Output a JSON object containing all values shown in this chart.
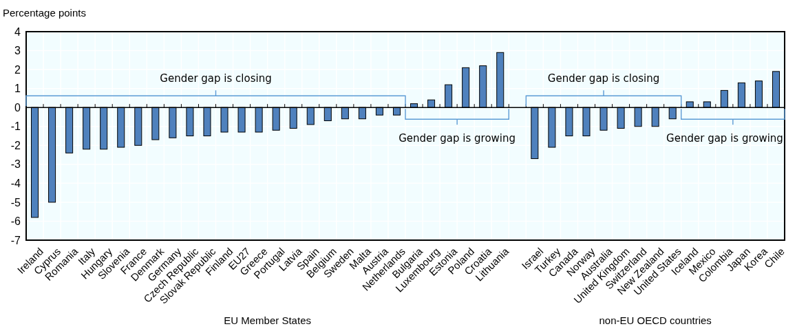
{
  "chart_data": {
    "type": "bar",
    "ylabel": "Percentage points",
    "categories": [
      "Ireland",
      "Cyprus",
      "Romania",
      "Italy",
      "Hungary",
      "Slovenia",
      "France",
      "Denmark",
      "Germany",
      "Czech Republic",
      "Slovak Republic",
      "Finland",
      "EU27",
      "Greece",
      "Portugal",
      "Latvia",
      "Spain",
      "Belgium",
      "Sweden",
      "Malta",
      "Austria",
      "Netherlands",
      "Bulgaria",
      "Luxembourg",
      "Estonia",
      "Poland",
      "Croatia",
      "Lithuania",
      null,
      "Israel",
      "Turkey",
      "Canada",
      "Norway",
      "Australia",
      "United Kingdom",
      "Switzerland",
      "New Zealand",
      "United States",
      "Iceland",
      "Mexico",
      "Colombia",
      "Japan",
      "Korea",
      "Chile"
    ],
    "values": [
      -5.8,
      -5.0,
      -2.4,
      -2.2,
      -2.2,
      -2.1,
      -2.0,
      -1.7,
      -1.6,
      -1.5,
      -1.5,
      -1.3,
      -1.3,
      -1.3,
      -1.2,
      -1.1,
      -0.9,
      -0.7,
      -0.6,
      -0.6,
      -0.4,
      -0.4,
      0.2,
      0.4,
      1.2,
      2.1,
      2.2,
      2.9,
      null,
      -2.7,
      -2.1,
      -1.5,
      -1.5,
      -1.2,
      -1.1,
      -1.0,
      -1.0,
      -0.6,
      0.3,
      0.3,
      0.9,
      1.3,
      1.4,
      1.9
    ],
    "color": "#4f81bd",
    "ylim": [
      -7,
      4
    ],
    "yticks": [
      -7,
      -6,
      -5,
      -4,
      -3,
      -2,
      -1,
      0,
      1,
      2,
      3,
      4
    ],
    "grid": true,
    "annotations": [
      "Gender gap is closing",
      "Gender gap is growing",
      "Gender gap is closing",
      "Gender gap is growing",
      "EU Member States",
      "non-EU OECD countries"
    ]
  }
}
